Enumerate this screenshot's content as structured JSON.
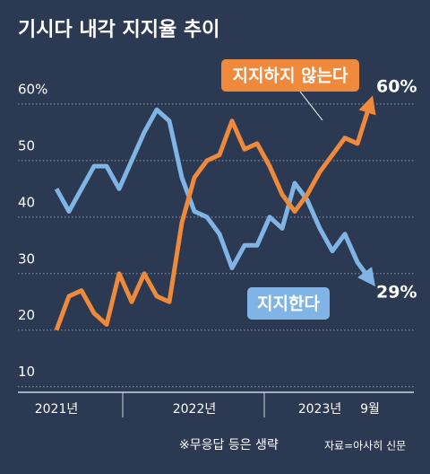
{
  "chart_data": {
    "type": "line",
    "title": "기시다 내각 지지율 추이",
    "categories": [
      "2021년",
      null,
      null,
      null,
      null,
      null,
      null,
      null,
      null,
      null,
      null,
      "2022년",
      null,
      null,
      null,
      null,
      null,
      null,
      null,
      null,
      null,
      "2023년",
      null,
      null,
      null,
      "9월"
    ],
    "series": [
      {
        "name": "지지한다",
        "color": "#7fb4e4",
        "values": [
          45,
          41,
          45,
          49,
          49,
          45,
          50,
          55,
          59,
          57,
          47,
          41,
          40,
          37,
          31,
          35,
          35,
          40,
          38,
          46,
          43,
          38,
          34,
          37,
          32,
          29
        ]
      },
      {
        "name": "지지하지 않는다",
        "color": "#ef8a3c",
        "values": [
          20,
          26,
          27,
          23,
          21,
          30,
          25,
          30,
          26,
          25,
          39,
          47,
          50,
          51,
          57,
          52,
          53,
          49,
          44,
          41,
          44,
          48,
          51,
          54,
          53,
          60
        ]
      }
    ],
    "end_labels": [
      "29%",
      "60%"
    ],
    "ylim": [
      9,
      63
    ],
    "yticks": [
      10,
      20,
      30,
      40,
      50,
      {
        "value": 60,
        "label": "60%"
      }
    ],
    "grid": true,
    "note": "※무응답 등은 생략",
    "source": "자료=아사히 신문"
  }
}
